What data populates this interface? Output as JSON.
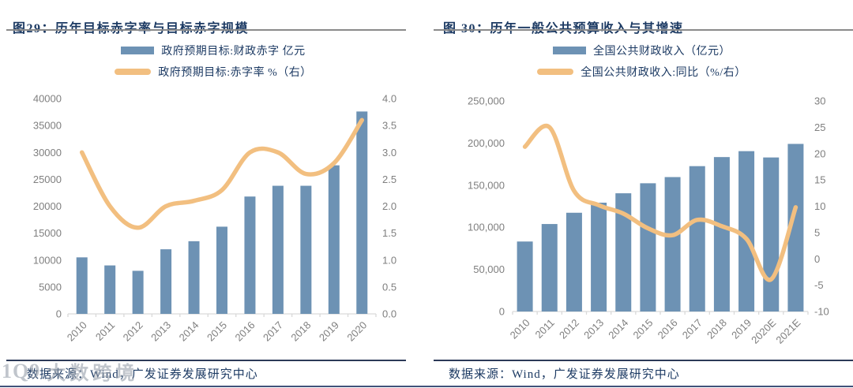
{
  "colors": {
    "bar": "#6d92b4",
    "line": "#f2bf80",
    "title_navy": "#1c3a63",
    "axis_text": "#7f7f7f",
    "axis_line": "#d9d9d9",
    "title_rule": "#8a8a8a",
    "source_rule": "#2c3a58",
    "bottom_border": "#41517a"
  },
  "watermark": {
    "logo": "1Q9",
    "text": "大数跨境"
  },
  "chart_data": [
    {
      "type": "bar+line",
      "title": "图29：历年目标赤字率与目标赤字规模",
      "legend": [
        {
          "label": "政府预期目标:财政赤字 亿元",
          "swatch": "bar"
        },
        {
          "label": "政府预期目标:赤字率 %（右）",
          "swatch": "line"
        }
      ],
      "categories": [
        "2010",
        "2011",
        "2012",
        "2013",
        "2014",
        "2015",
        "2016",
        "2017",
        "2018",
        "2019",
        "2020"
      ],
      "series": [
        {
          "name": "政府预期目标:财政赤字 亿元",
          "type": "bar",
          "axis": "left",
          "values": [
            10500,
            9000,
            8000,
            12000,
            13500,
            16200,
            21800,
            23800,
            23800,
            27600,
            37600
          ]
        },
        {
          "name": "政府预期目标:赤字率 %（右）",
          "type": "line",
          "axis": "right",
          "values": [
            3.0,
            2.0,
            1.6,
            2.0,
            2.1,
            2.3,
            3.0,
            3.0,
            2.6,
            2.8,
            3.6
          ]
        }
      ],
      "left_axis": {
        "min": 0,
        "max": 40000,
        "ticks": [
          "0",
          "5000",
          "10000",
          "15000",
          "20000",
          "25000",
          "30000",
          "35000",
          "40000"
        ]
      },
      "right_axis": {
        "min": 0,
        "max": 4.0,
        "ticks": [
          "0.0",
          "0.5",
          "1.0",
          "1.5",
          "2.0",
          "2.5",
          "3.0",
          "3.5",
          "4.0"
        ]
      },
      "grid": false,
      "legend_position": "top-center",
      "source": "数据来源：Wind，广发证券发展研究中心"
    },
    {
      "type": "bar+line",
      "title": "图 30：历年一般公共预算收入与其增速",
      "legend": [
        {
          "label": "全国公共财政收入（亿元）",
          "swatch": "bar"
        },
        {
          "label": "全国公共财政收入:同比（%/右）",
          "swatch": "line"
        }
      ],
      "categories": [
        "2010",
        "2011",
        "2012",
        "2013",
        "2014",
        "2015",
        "2016",
        "2017",
        "2018",
        "2019",
        "2020E",
        "2021E"
      ],
      "series": [
        {
          "name": "全国公共财政收入（亿元）",
          "type": "bar",
          "axis": "left",
          "values": [
            83100,
            103870,
            117250,
            129210,
            140370,
            152270,
            159600,
            172590,
            183360,
            190390,
            182900,
            199000
          ]
        },
        {
          "name": "全国公共财政收入:同比（%/右）",
          "type": "line",
          "axis": "right",
          "values": [
            21.3,
            25.0,
            12.9,
            10.2,
            8.6,
            5.8,
            4.5,
            7.4,
            6.2,
            3.8,
            -3.9,
            9.8
          ]
        }
      ],
      "left_axis": {
        "min": 0,
        "max": 250000,
        "ticks": [
          "0",
          "50,000",
          "100,000",
          "150,000",
          "200,000",
          "250,000"
        ]
      },
      "right_axis": {
        "min": -10,
        "max": 30,
        "ticks": [
          "-10",
          "-5",
          "0",
          "5",
          "10",
          "15",
          "20",
          "25",
          "30"
        ]
      },
      "grid": false,
      "legend_position": "top-center",
      "source": "数据来源：Wind，广发证券发展研究中心"
    }
  ]
}
